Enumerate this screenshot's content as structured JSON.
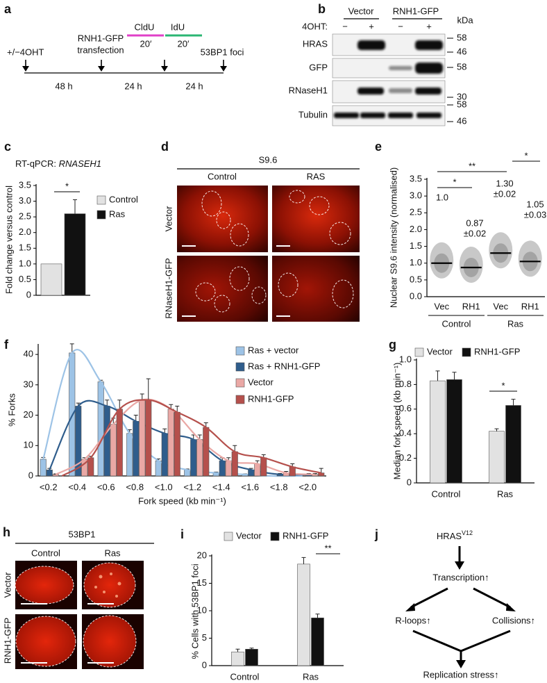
{
  "panels": {
    "a": {
      "letter": "a",
      "treatment": "+/−4OHT",
      "transfection": [
        "RNH1-GFP",
        "transfection"
      ],
      "cldu": "CldU",
      "cldu_time": "20′",
      "idu": "IdU",
      "idu_time": "20′",
      "readout": "53BP1 foci",
      "intervals": [
        "48 h",
        "24 h",
        "24 h"
      ]
    },
    "b": {
      "letter": "b",
      "groups": [
        "Vector",
        "RNH1-GFP"
      ],
      "treatment_label": "4OHT:",
      "lanes": [
        "−",
        "+",
        "−",
        "+"
      ],
      "unit": "kDa",
      "rows": [
        "HRAS",
        "GFP",
        "RNaseH1",
        "Tubulin"
      ],
      "markers": [
        58,
        46,
        58,
        30,
        58,
        46
      ]
    },
    "d": {
      "letter": "d",
      "stain": "S9.6",
      "columns": [
        "Control",
        "RAS"
      ],
      "rows": [
        "Vector",
        "RNaseH1-GFP"
      ]
    },
    "h": {
      "letter": "h",
      "stain": "53BP1",
      "columns": [
        "Control",
        "Ras"
      ],
      "rows": [
        "Vector",
        "RNH1-GFP"
      ]
    },
    "j": {
      "letter": "j",
      "top": "HRAS",
      "top_superscript": "V12",
      "middle": "Transcription↑",
      "left": "R-loops↑",
      "right": "Collisions↑",
      "bottom": "Replication stress↑"
    }
  },
  "chart_data": [
    {
      "type": "bar",
      "panel": "c",
      "title": "RT-qPCR:",
      "title_italic": "RNASEH1",
      "ylabel": "Fold change versus control",
      "categories": [
        null
      ],
      "series": [
        {
          "name": "Control",
          "color": "#e2e2e2",
          "values": [
            1.0
          ]
        },
        {
          "name": "Ras",
          "color": "#111111",
          "values": [
            2.6
          ],
          "errors": [
            0.45
          ]
        }
      ],
      "ylim": [
        0,
        3.5
      ],
      "yticks": [
        0,
        0.5,
        {
          "value": 1,
          "label": "1.0"
        },
        1.5,
        {
          "value": 2,
          "label": "2.0"
        },
        2.5,
        {
          "value": 3,
          "label": "3.0"
        },
        3.5
      ],
      "significance": [
        {
          "label": "*"
        }
      ]
    },
    {
      "type": "dot",
      "panel": "e",
      "ylabel": "Nuclear S9.6 intensity (normalised)",
      "categories": [
        "Vec",
        "RH1",
        "Vec",
        "RH1"
      ],
      "groups": [
        "Control",
        "Ras"
      ],
      "values": [
        1.0,
        0.87,
        1.3,
        1.05
      ],
      "value_labels": [
        "1.0",
        "0.87",
        "1.30",
        "1.05"
      ],
      "errors": [
        null,
        0.02,
        0.02,
        0.03
      ],
      "error_labels": [
        null,
        "±0.02",
        "±0.02",
        "±0.03"
      ],
      "color": "#9a9a9a",
      "ylim": [
        0,
        3.5
      ],
      "yticks": [
        {
          "value": 0,
          "label": "0.0"
        },
        0.5,
        {
          "value": 1,
          "label": "1.0"
        },
        1.5,
        {
          "value": 2,
          "label": "2.0"
        },
        2.5,
        {
          "value": 3,
          "label": "3.0"
        },
        3.5
      ],
      "significance": [
        {
          "label": "*"
        },
        {
          "label": "**"
        },
        {
          "label": "*"
        }
      ]
    },
    {
      "type": "bar",
      "panel": "f",
      "ylabel": "% Forks",
      "xlabel": "Fork speed (kb min⁻¹)",
      "fit_curves": true,
      "categories": [
        "<0.2",
        "<0.4",
        "<0.6",
        "<0.8",
        "<1.0",
        "<1.2",
        "<1.4",
        "<1.6",
        "<1.8",
        "<2.0"
      ],
      "series": [
        {
          "name": "Ras + vector",
          "color": "#9dc3e6",
          "values": [
            5.5,
            40.5,
            31,
            14,
            5,
            2,
            1,
            0.5,
            0,
            0
          ],
          "errors": [
            0.6,
            3,
            0.5,
            1.2,
            0.6,
            0.3,
            0.3,
            0.2,
            0,
            0
          ]
        },
        {
          "name": "Ras + RNH1-GFP",
          "color": "#2f5d8c",
          "values": [
            2,
            23,
            23,
            18,
            14,
            12,
            5,
            2,
            0.5,
            0.5
          ],
          "errors": [
            0.5,
            1,
            2,
            2,
            1.5,
            1.5,
            1,
            0.5,
            0.3,
            0.3
          ]
        },
        {
          "name": "Vector",
          "color": "#eaa8a5",
          "values": [
            0.5,
            5.5,
            17,
            25,
            22,
            12,
            5,
            4,
            1,
            0.5
          ],
          "errors": [
            0.2,
            0.5,
            2,
            2,
            1.5,
            1.5,
            1,
            1,
            0.5,
            0.3
          ]
        },
        {
          "name": "RNH1-GFP",
          "color": "#b5504c",
          "values": [
            0,
            6,
            22,
            25,
            21,
            16,
            8,
            6,
            3,
            1
          ],
          "errors": [
            0,
            0.5,
            3,
            7,
            2,
            1.5,
            2,
            1,
            1,
            1.5
          ]
        }
      ],
      "ylim": [
        0,
        43
      ],
      "yticks": [
        0,
        10,
        20,
        30,
        40
      ]
    },
    {
      "type": "bar",
      "panel": "g",
      "ylabel": "Median fork speed (kb min⁻¹)",
      "categories": [
        "Control",
        "Ras"
      ],
      "series": [
        {
          "name": "Vector",
          "color": "#e2e2e2",
          "values": [
            0.83,
            0.42
          ],
          "errors": [
            0.08,
            0.02
          ]
        },
        {
          "name": "RNH1-GFP",
          "color": "#111111",
          "values": [
            0.84,
            0.63
          ],
          "errors": [
            0.06,
            0.05
          ]
        }
      ],
      "ylim": [
        0,
        1
      ],
      "yticks": [
        0,
        0.2,
        0.4,
        0.6,
        0.8,
        {
          "value": 1,
          "label": "1.0"
        }
      ],
      "significance": [
        {
          "label": "*"
        }
      ]
    },
    {
      "type": "bar",
      "panel": "i",
      "ylabel": "% Cells with 53BP1 foci",
      "categories": [
        "Control",
        "Ras"
      ],
      "series": [
        {
          "name": "Vector",
          "color": "#e2e2e2",
          "values": [
            2.5,
            18.5
          ],
          "errors": [
            0.5,
            1.2
          ]
        },
        {
          "name": "RNH1-GFP",
          "color": "#111111",
          "values": [
            3.0,
            8.7
          ],
          "errors": [
            0.2,
            0.7
          ]
        }
      ],
      "ylim": [
        0,
        20
      ],
      "yticks": [
        0,
        5,
        10,
        15,
        20
      ],
      "significance": [
        {
          "label": "**"
        }
      ]
    }
  ]
}
